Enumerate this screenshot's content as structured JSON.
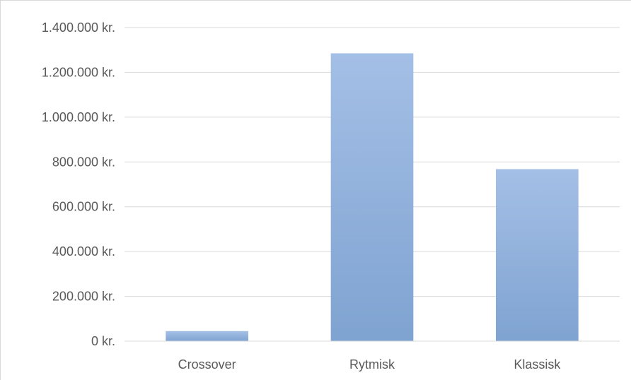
{
  "chart_data": {
    "type": "bar",
    "title": "",
    "xlabel": "",
    "ylabel": "",
    "categories": [
      "Crossover",
      "Rytmisk",
      "Klassisk"
    ],
    "values": [
      45000,
      1285000,
      768000
    ],
    "ylim": [
      0,
      1400000
    ],
    "ytick_values": [
      0,
      200000,
      400000,
      600000,
      800000,
      1000000,
      1200000,
      1400000
    ],
    "ytick_labels": [
      "0 kr.",
      "200.000 kr.",
      "400.000 kr.",
      "600.000 kr.",
      "800.000 kr.",
      "1.000.000 kr.",
      "1.200.000 kr.",
      "1.400.000 kr."
    ],
    "grid": true,
    "legend": "none",
    "colors": {
      "bar_top": "#a4bfe6",
      "bar_bottom": "#7fa3d1",
      "gridline": "#d9d9d9",
      "text": "#595959"
    }
  }
}
